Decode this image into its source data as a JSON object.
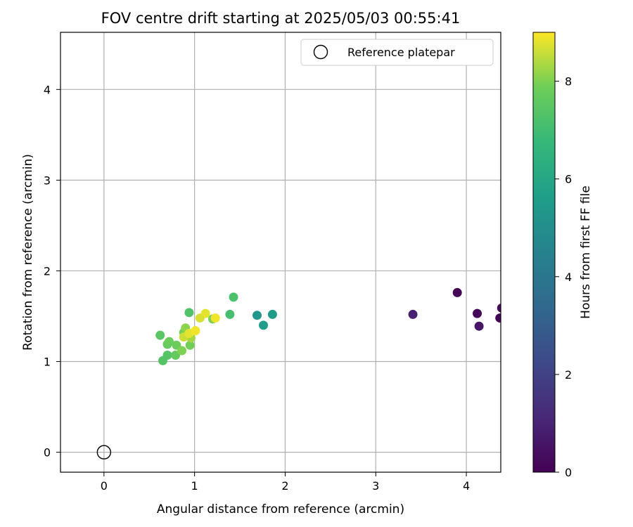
{
  "chart_data": {
    "type": "scatter",
    "title": "FOV centre drift starting at 2025/05/03 00:55:41",
    "xlabel": "Angular distance from reference (arcmin)",
    "ylabel": "Rotation from reference (arcmin)",
    "xlim": [
      -0.48,
      4.38
    ],
    "ylim": [
      -0.22,
      4.63
    ],
    "xticks": [
      0,
      1,
      2,
      3,
      4
    ],
    "yticks": [
      0,
      1,
      2,
      3,
      4
    ],
    "grid": true,
    "legend": {
      "placement": "top-right",
      "entries": [
        "Reference platepar"
      ]
    },
    "reference_point": {
      "x": 0,
      "y": 0,
      "label": "Reference platepar"
    },
    "colorbar": {
      "label": "Hours from first FF file",
      "colormap": "viridis",
      "range": [
        0,
        9
      ],
      "ticks": [
        0,
        2,
        4,
        6,
        8
      ]
    },
    "points": [
      {
        "x": 3.9,
        "y": 1.76,
        "hours": 0.05
      },
      {
        "x": 4.12,
        "y": 1.53,
        "hours": 0.1
      },
      {
        "x": 4.37,
        "y": 1.48,
        "hours": 0.15
      },
      {
        "x": 4.39,
        "y": 1.59,
        "hours": 0.2
      },
      {
        "x": 4.14,
        "y": 1.39,
        "hours": 0.6
      },
      {
        "x": 3.41,
        "y": 1.52,
        "hours": 0.9
      },
      {
        "x": 1.69,
        "y": 1.51,
        "hours": 5.3
      },
      {
        "x": 1.76,
        "y": 1.4,
        "hours": 5.6
      },
      {
        "x": 1.86,
        "y": 1.52,
        "hours": 5.5
      },
      {
        "x": 1.39,
        "y": 1.52,
        "hours": 7.1
      },
      {
        "x": 1.43,
        "y": 1.71,
        "hours": 7.2
      },
      {
        "x": 0.94,
        "y": 1.54,
        "hours": 7.3
      },
      {
        "x": 0.62,
        "y": 1.29,
        "hours": 7.5
      },
      {
        "x": 0.65,
        "y": 1.01,
        "hours": 7.4
      },
      {
        "x": 0.7,
        "y": 1.07,
        "hours": 7.4
      },
      {
        "x": 0.7,
        "y": 1.19,
        "hours": 7.7
      },
      {
        "x": 0.72,
        "y": 1.22,
        "hours": 7.8
      },
      {
        "x": 0.79,
        "y": 1.07,
        "hours": 7.7
      },
      {
        "x": 0.8,
        "y": 1.18,
        "hours": 7.8
      },
      {
        "x": 0.86,
        "y": 1.12,
        "hours": 8.0
      },
      {
        "x": 0.88,
        "y": 1.32,
        "hours": 7.9
      },
      {
        "x": 0.9,
        "y": 1.37,
        "hours": 8.1
      },
      {
        "x": 0.95,
        "y": 1.18,
        "hours": 7.9
      },
      {
        "x": 0.96,
        "y": 1.26,
        "hours": 8.3
      },
      {
        "x": 1.2,
        "y": 1.47,
        "hours": 8.0
      },
      {
        "x": 0.88,
        "y": 1.27,
        "hours": 8.6
      },
      {
        "x": 0.94,
        "y": 1.31,
        "hours": 8.8
      },
      {
        "x": 1.01,
        "y": 1.34,
        "hours": 8.9
      },
      {
        "x": 1.06,
        "y": 1.48,
        "hours": 8.7
      },
      {
        "x": 1.12,
        "y": 1.53,
        "hours": 8.8
      },
      {
        "x": 1.23,
        "y": 1.48,
        "hours": 8.9
      }
    ]
  }
}
